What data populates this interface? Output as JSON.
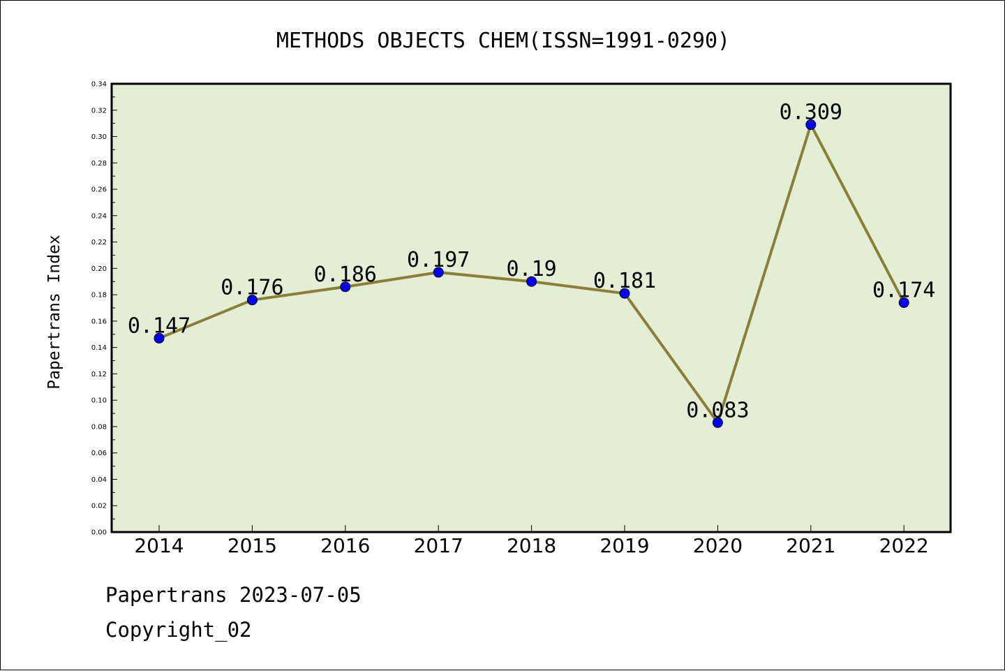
{
  "chart_data": {
    "type": "line",
    "title": "METHODS OBJECTS CHEM(ISSN=1991-0290)",
    "xlabel": "",
    "ylabel": "Papertrans Index",
    "categories": [
      "2014",
      "2015",
      "2016",
      "2017",
      "2018",
      "2019",
      "2020",
      "2021",
      "2022"
    ],
    "series": [
      {
        "values": [
          0.147,
          0.176,
          0.186,
          0.197,
          0.19,
          0.181,
          0.083,
          0.309,
          0.174
        ]
      }
    ],
    "data_labels": [
      "0.147",
      "0.176",
      "0.186",
      "0.197",
      "0.19",
      "0.181",
      "0.083",
      "0.309",
      "0.174"
    ],
    "ylim": [
      0,
      0.34
    ],
    "yticks": [
      "0.00",
      "0.02",
      "0.04",
      "0.06",
      "0.08",
      "0.10",
      "0.12",
      "0.14",
      "0.16",
      "0.18",
      "0.20",
      "0.22",
      "0.24",
      "0.26",
      "0.28",
      "0.30",
      "0.32",
      "0.34"
    ],
    "grid": false,
    "legend": "none",
    "colors": {
      "plot_background": "#e2efd5",
      "line": "#8c7d37",
      "marker": "#0000ff",
      "axes": "#000000"
    }
  },
  "footer": {
    "date_line": "Papertrans 2023-07-05",
    "copyright": "Copyright_02"
  }
}
